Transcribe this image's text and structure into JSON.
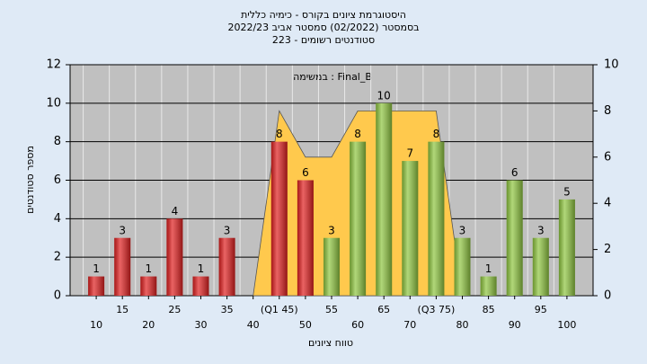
{
  "chart_data": {
    "type": "bar",
    "title": [
      "היסטוגרמת ציונים בקורס - כימיה כללית",
      "בסמסטר  (02/2022)  סמסטר אביב 2022/23",
      "סטודנטים רשומים - 223"
    ],
    "annotation": "במשימה : Final_B",
    "xlabel": "טווח ציונים",
    "ylabel": "מספר סטודנטים",
    "categories": [
      "10",
      "15",
      "20",
      "25",
      "30",
      "35",
      "40",
      "(Q1 45)",
      "50",
      "55",
      "60",
      "65",
      "70",
      "(Q3 75)",
      "80",
      "85",
      "90",
      "95",
      "100"
    ],
    "series": [
      {
        "type": "bar",
        "values": [
          1,
          3,
          1,
          4,
          1,
          3,
          0,
          8,
          6,
          3,
          8,
          10,
          7,
          8,
          3,
          1,
          6,
          3,
          5
        ],
        "colors": [
          "#e02020",
          "#e02020",
          "#e02020",
          "#e02020",
          "#e02020",
          "#e02020",
          "#e02020",
          "#e02020",
          "#e02020",
          "#8fc640",
          "#8fc640",
          "#8fc640",
          "#8fc640",
          "#8fc640",
          "#8fc640",
          "#8fc640",
          "#8fc640",
          "#8fc640",
          "#8fc640"
        ]
      },
      {
        "type": "area",
        "axis": "y2",
        "color": "#ffc94d",
        "values": [
          null,
          null,
          null,
          null,
          null,
          null,
          0,
          8,
          6,
          6,
          8,
          8,
          8,
          8,
          0,
          null,
          null,
          null,
          null
        ]
      }
    ],
    "ylim": [
      0,
      12
    ],
    "yticks": [
      0,
      2,
      4,
      6,
      8,
      10,
      12
    ],
    "y2lim": [
      0,
      10
    ],
    "y2ticks": [
      0,
      2,
      4,
      6,
      8,
      10
    ],
    "grid": true
  }
}
